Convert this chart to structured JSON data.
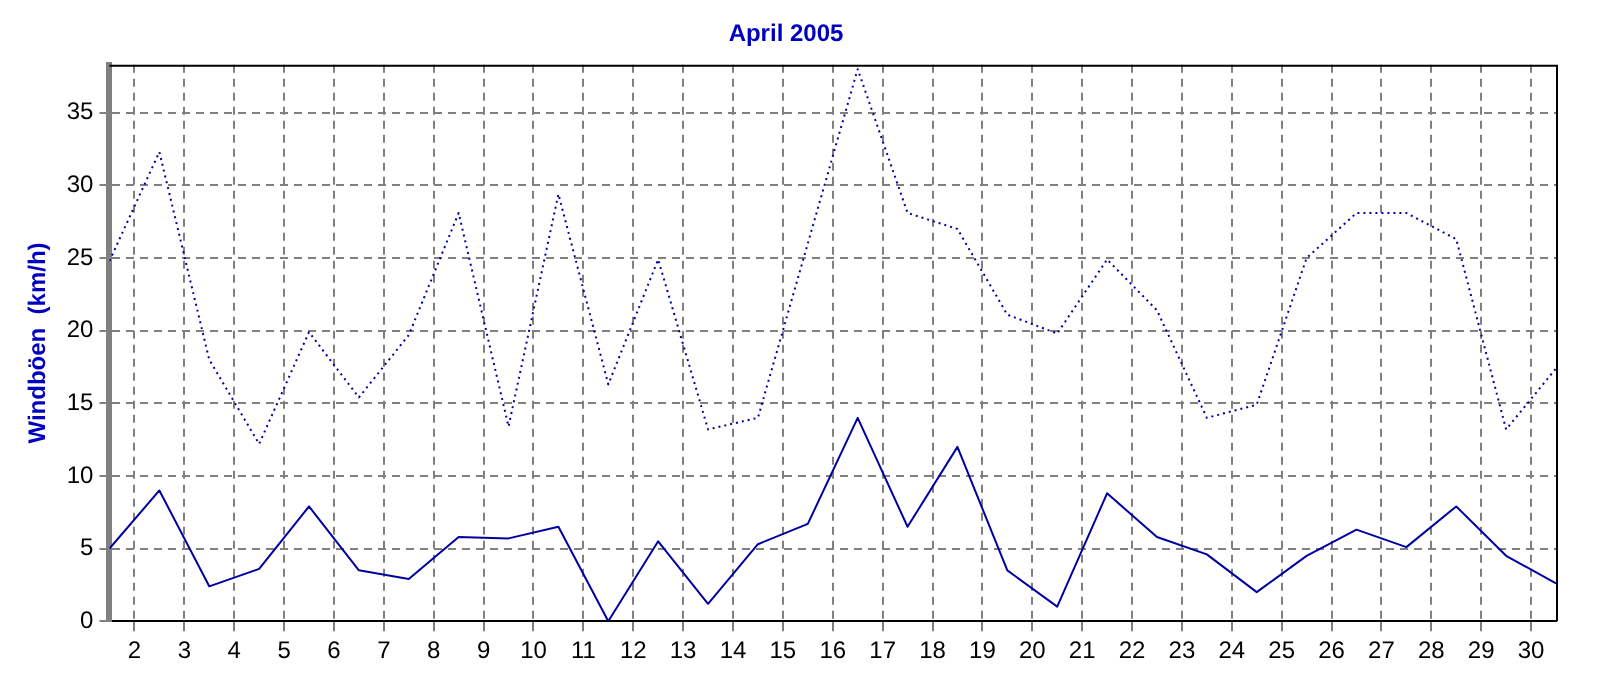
{
  "chart_data": {
    "type": "line",
    "title": "April 2005",
    "ylabel": "Windböen  (km/h)",
    "x": [
      1.5,
      2.5,
      3.5,
      4.5,
      5.5,
      6.5,
      7.5,
      8.5,
      9.5,
      10.5,
      11.5,
      12.5,
      13.5,
      14.5,
      15.5,
      16.5,
      17.5,
      18.5,
      19.5,
      20.5,
      21.5,
      22.5,
      23.5,
      24.5,
      25.5,
      26.5,
      27.5,
      28.5,
      29.5,
      30.5
    ],
    "series": [
      {
        "color": "#0000a0",
        "line_style": "dotted",
        "values": [
          24.8,
          32.3,
          18.0,
          12.2,
          19.9,
          15.4,
          19.7,
          28.1,
          13.4,
          29.4,
          16.3,
          24.9,
          13.2,
          14.0,
          26,
          38.0,
          28.1,
          27.0,
          21.1,
          19.8,
          24.9,
          21.4,
          14.0,
          14.9,
          25.0,
          28.1,
          28.1,
          26.3,
          13.2,
          17.4
        ]
      },
      {
        "color": "#0000a0",
        "line_style": "solid",
        "values": [
          5.0,
          9.0,
          2.4,
          3.6,
          7.9,
          3.5,
          2.9,
          5.8,
          5.7,
          6.5,
          0,
          5.5,
          1.2,
          5.3,
          6.7,
          14.0,
          6.5,
          12.0,
          3.5,
          1.0,
          8.8,
          5.8,
          4.6,
          2.0,
          4.5,
          6.3,
          5.1,
          7.9,
          4.5,
          2.6
        ]
      }
    ],
    "xlim": [
      1.5,
      30.5
    ],
    "xticks": [
      2,
      3,
      4,
      5,
      6,
      7,
      8,
      9,
      10,
      11,
      12,
      13,
      14,
      15,
      16,
      17,
      18,
      19,
      20,
      21,
      22,
      23,
      24,
      25,
      26,
      27,
      28,
      29,
      30
    ],
    "ylim": [
      0,
      38.3
    ],
    "yticks": [
      0,
      5,
      10,
      15,
      20,
      25,
      30,
      35
    ],
    "grid": true,
    "legend": false,
    "marker": "none"
  }
}
